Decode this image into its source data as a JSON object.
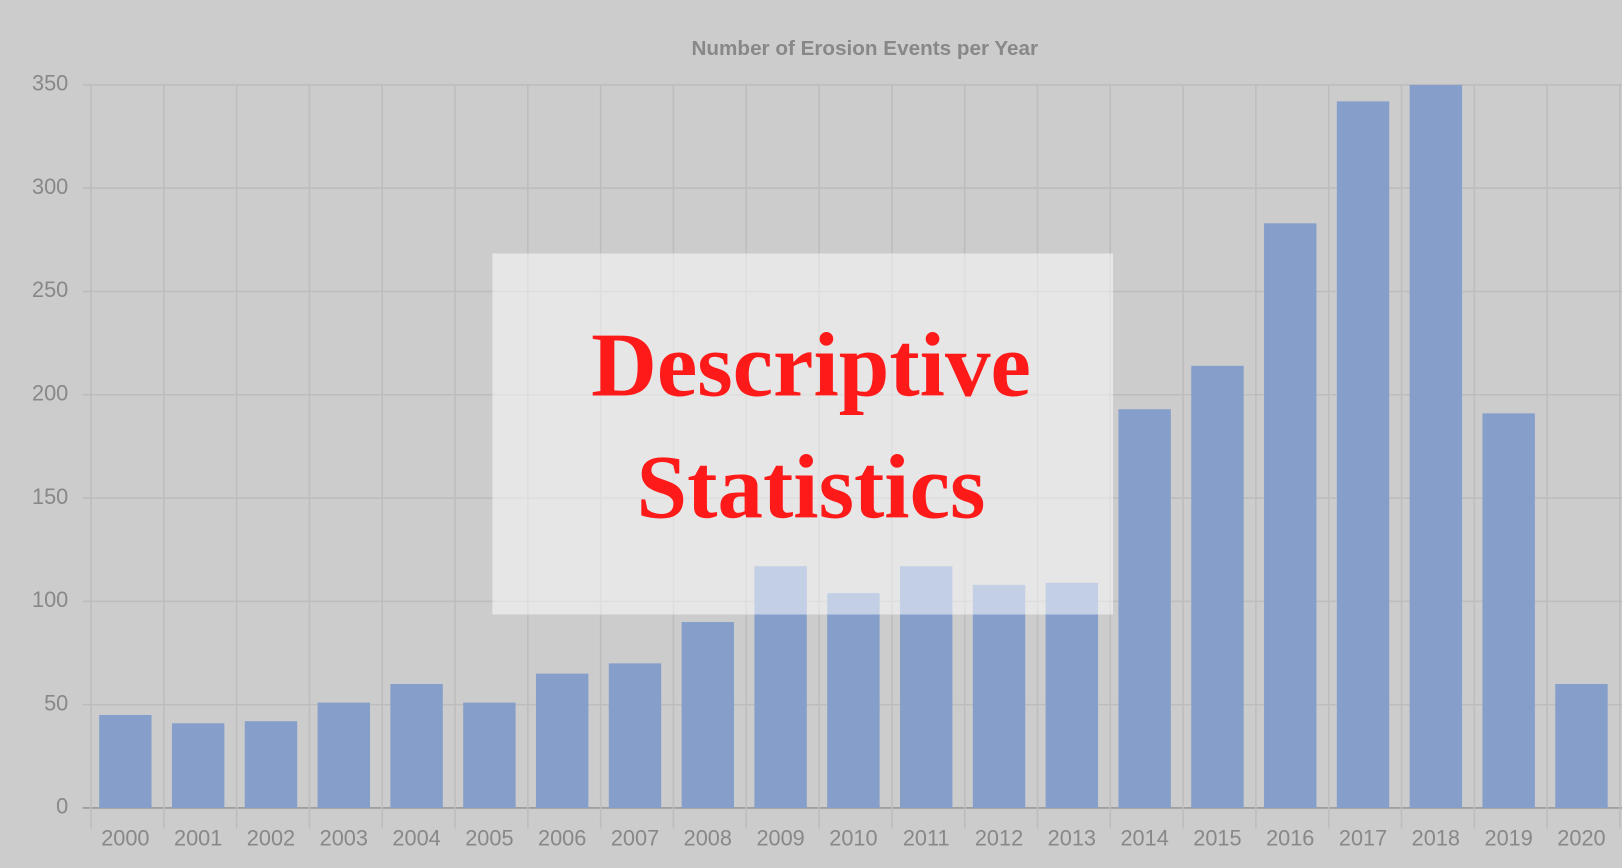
{
  "chart_data": {
    "type": "bar",
    "title": "Number of Erosion Events per Year",
    "categories": [
      "2000",
      "2001",
      "2002",
      "2003",
      "2004",
      "2005",
      "2006",
      "2007",
      "2008",
      "2009",
      "2010",
      "2011",
      "2012",
      "2013",
      "2014",
      "2015",
      "2016",
      "2017",
      "2018",
      "2019",
      "2020"
    ],
    "values": [
      45,
      41,
      42,
      51,
      60,
      51,
      65,
      70,
      90,
      117,
      104,
      117,
      108,
      109,
      193,
      214,
      283,
      342,
      350,
      191,
      60
    ],
    "color": "#869fca",
    "ylim": [
      0,
      350
    ],
    "yticks": [
      0,
      50,
      100,
      150,
      200,
      250,
      300,
      350
    ],
    "grid": true,
    "annotations": [
      "Descriptive",
      "Statistics"
    ]
  }
}
